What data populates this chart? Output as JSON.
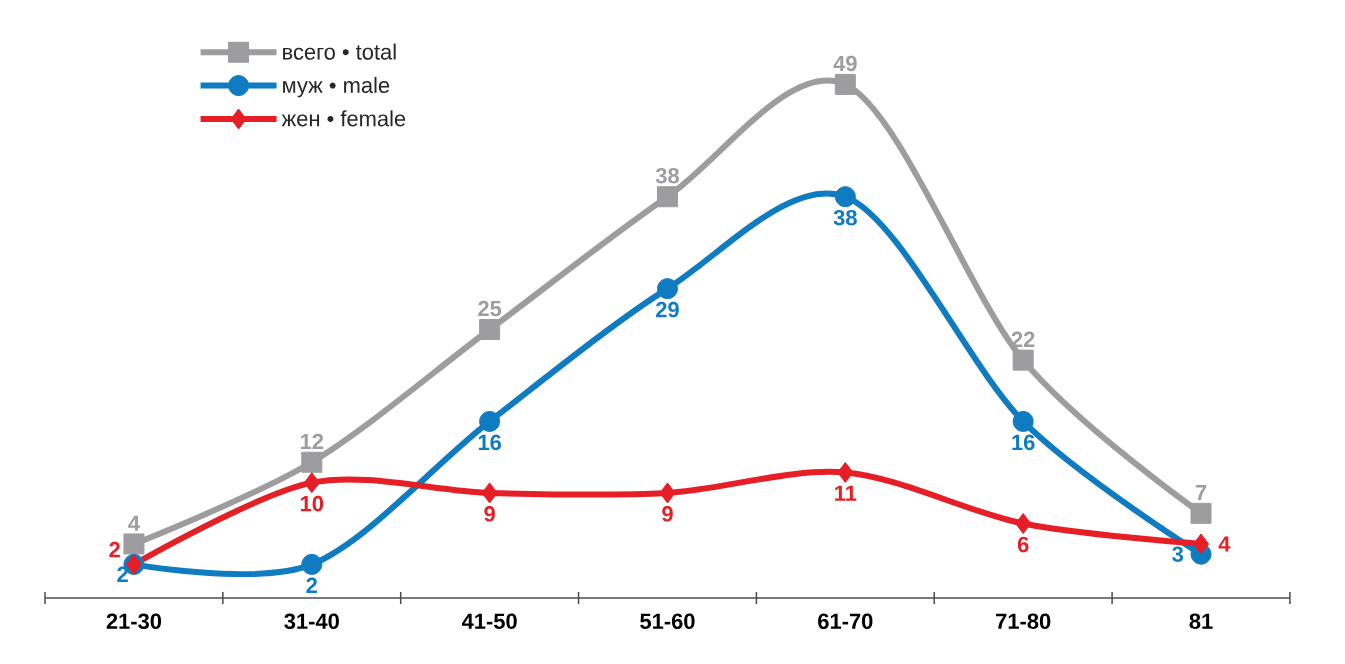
{
  "chart_data": {
    "type": "line",
    "categories": [
      "21-30",
      "31-40",
      "41-50",
      "51-60",
      "61-70",
      "71-80",
      "81"
    ],
    "series": [
      {
        "name": "всего • total",
        "color": "#9d9d9f",
        "marker": "square",
        "values": [
          4,
          12,
          25,
          38,
          49,
          22,
          7
        ]
      },
      {
        "name": "муж • male",
        "color": "#0f7cc1",
        "marker": "circle",
        "values": [
          2,
          2,
          16,
          29,
          38,
          16,
          3
        ]
      },
      {
        "name": "жен • female",
        "color": "#e61f26",
        "marker": "diamond",
        "values": [
          2,
          10,
          9,
          9,
          11,
          6,
          4
        ]
      }
    ],
    "data_labels": true,
    "legend": "top left",
    "tick_labels": "x",
    "line_style": "solid"
  }
}
